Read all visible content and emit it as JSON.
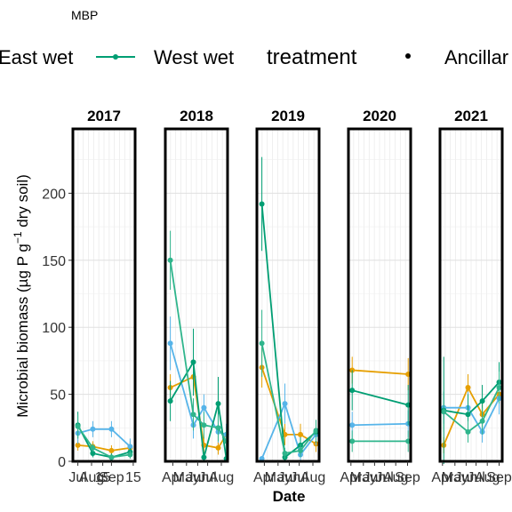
{
  "chart_data": {
    "type": "line",
    "title": "MBP",
    "xlabel": "Date",
    "ylabel_main": "Microbial biomass (µg P g",
    "ylabel_sup": "−1",
    "ylabel_tail": " dry soil)",
    "ylim": [
      0,
      248
    ],
    "yticks": [
      0,
      50,
      100,
      150,
      200
    ],
    "grid": true,
    "legend": {
      "position": "top",
      "title": "treatment",
      "items": [
        "East wet",
        "West wet",
        "Ancillar"
      ]
    },
    "colors": {
      "orange": "#E69F00",
      "skyblue": "#56B4E9",
      "green": "#009E73",
      "lightgreen": "#2FB58C"
    },
    "panels": [
      {
        "year": "2017",
        "ticklabels": [
          "Jul",
          "Aug",
          "15",
          "Sep",
          "15"
        ],
        "tickpos": [
          0.08,
          0.3,
          0.48,
          0.62,
          0.97
        ],
        "series": [
          {
            "color": "orange",
            "points": [
              [
                0.08,
                12
              ],
              [
                0.32,
                11
              ],
              [
                0.62,
                8
              ],
              [
                0.92,
                10
              ]
            ],
            "err": [
              4,
              4,
              4,
              5
            ]
          },
          {
            "color": "skyblue",
            "points": [
              [
                0.08,
                21
              ],
              [
                0.32,
                24
              ],
              [
                0.62,
                24
              ],
              [
                0.92,
                11
              ]
            ],
            "err": [
              8,
              6,
              6,
              6
            ]
          },
          {
            "color": "green",
            "points": [
              [
                0.08,
                27
              ],
              [
                0.32,
                6
              ],
              [
                0.62,
                3
              ],
              [
                0.92,
                7
              ]
            ],
            "err": [
              10,
              3,
              3,
              3
            ]
          },
          {
            "color": "lightgreen",
            "points": [
              [
                0.08,
                26
              ],
              [
                0.32,
                10
              ],
              [
                0.62,
                3
              ],
              [
                0.92,
                5
              ]
            ],
            "err": [
              9,
              3,
              2,
              3
            ]
          }
        ]
      },
      {
        "year": "2018",
        "ticklabels": [
          "Apr",
          "May",
          "Jun",
          "Jul",
          "Aug"
        ],
        "tickpos": [
          0.12,
          0.34,
          0.52,
          0.68,
          0.9
        ],
        "series": [
          {
            "color": "orange",
            "points": [
              [
                0.08,
                55
              ],
              [
                0.45,
                63
              ],
              [
                0.62,
                12
              ],
              [
                0.85,
                10
              ],
              [
                0.98,
                20
              ]
            ],
            "err": [
              10,
              12,
              6,
              5,
              6
            ]
          },
          {
            "color": "skyblue",
            "points": [
              [
                0.08,
                88
              ],
              [
                0.45,
                27
              ],
              [
                0.62,
                40
              ],
              [
                0.85,
                22
              ],
              [
                0.98,
                20
              ]
            ],
            "err": [
              20,
              10,
              10,
              8,
              8
            ]
          },
          {
            "color": "green",
            "points": [
              [
                0.08,
                45
              ],
              [
                0.45,
                74
              ],
              [
                0.62,
                3
              ],
              [
                0.85,
                43
              ],
              [
                0.98,
                2
              ]
            ],
            "err": [
              15,
              25,
              3,
              20,
              2
            ]
          },
          {
            "color": "lightgreen",
            "points": [
              [
                0.08,
                150
              ],
              [
                0.45,
                35
              ],
              [
                0.62,
                27
              ],
              [
                0.85,
                25
              ],
              [
                0.98,
                15
              ]
            ],
            "err": [
              22,
              12,
              10,
              10,
              8
            ]
          }
        ]
      },
      {
        "year": "2019",
        "ticklabels": [
          "Apr",
          "May",
          "Jun",
          "Jul",
          "Aug"
        ],
        "tickpos": [
          0.12,
          0.34,
          0.52,
          0.68,
          0.9
        ],
        "series": [
          {
            "color": "orange",
            "points": [
              [
                0.08,
                70
              ],
              [
                0.45,
                20
              ],
              [
                0.7,
                20
              ],
              [
                0.95,
                13
              ]
            ],
            "err": [
              15,
              8,
              8,
              6
            ]
          },
          {
            "color": "skyblue",
            "points": [
              [
                0.08,
                2
              ],
              [
                0.45,
                43
              ],
              [
                0.7,
                5
              ],
              [
                0.95,
                20
              ]
            ],
            "err": [
              2,
              15,
              4,
              8
            ]
          },
          {
            "color": "green",
            "points": [
              [
                0.08,
                192
              ],
              [
                0.45,
                3
              ],
              [
                0.7,
                12
              ],
              [
                0.95,
                22
              ]
            ],
            "err": [
              35,
              3,
              6,
              8
            ]
          },
          {
            "color": "lightgreen",
            "points": [
              [
                0.08,
                88
              ],
              [
                0.45,
                6
              ],
              [
                0.7,
                8
              ],
              [
                0.95,
                23
              ]
            ],
            "err": [
              25,
              4,
              5,
              8
            ]
          }
        ]
      },
      {
        "year": "2020",
        "ticklabels": [
          "Apr",
          "May",
          "Jun",
          "Jul",
          "Aug",
          "Sep"
        ],
        "tickpos": [
          0.04,
          0.24,
          0.42,
          0.58,
          0.76,
          0.95
        ],
        "series": [
          {
            "color": "orange",
            "points": [
              [
                0.06,
                68
              ],
              [
                0.96,
                65
              ]
            ],
            "err": [
              10,
              12
            ]
          },
          {
            "color": "skyblue",
            "points": [
              [
                0.06,
                27
              ],
              [
                0.96,
                28
              ]
            ],
            "err": [
              10,
              10
            ]
          },
          {
            "color": "green",
            "points": [
              [
                0.06,
                53
              ],
              [
                0.96,
                42
              ]
            ],
            "err": [
              15,
              15
            ]
          },
          {
            "color": "lightgreen",
            "points": [
              [
                0.06,
                15
              ],
              [
                0.96,
                15
              ]
            ],
            "err": [
              8,
              8
            ]
          }
        ]
      },
      {
        "year": "2021",
        "ticklabels": [
          "Apr",
          "May",
          "Jun",
          "Jul",
          "Aug",
          "Sep"
        ],
        "tickpos": [
          0.04,
          0.24,
          0.42,
          0.58,
          0.76,
          0.95
        ],
        "series": [
          {
            "color": "orange",
            "points": [
              [
                0.06,
                12
              ],
              [
                0.45,
                55
              ],
              [
                0.68,
                35
              ],
              [
                0.95,
                50
              ]
            ],
            "err": [
              6,
              10,
              10,
              10
            ]
          },
          {
            "color": "skyblue",
            "points": [
              [
                0.06,
                40
              ],
              [
                0.45,
                40
              ],
              [
                0.68,
                22
              ],
              [
                0.95,
                47
              ]
            ],
            "err": [
              12,
              12,
              8,
              12
            ]
          },
          {
            "color": "green",
            "points": [
              [
                0.06,
                38
              ],
              [
                0.45,
                35
              ],
              [
                0.68,
                45
              ],
              [
                0.95,
                59
              ]
            ],
            "err": [
              40,
              15,
              12,
              15
            ]
          },
          {
            "color": "lightgreen",
            "points": [
              [
                0.06,
                37
              ],
              [
                0.45,
                22
              ],
              [
                0.68,
                30
              ],
              [
                0.95,
                55
              ]
            ],
            "err": [
              15,
              8,
              10,
              12
            ]
          }
        ]
      }
    ]
  }
}
